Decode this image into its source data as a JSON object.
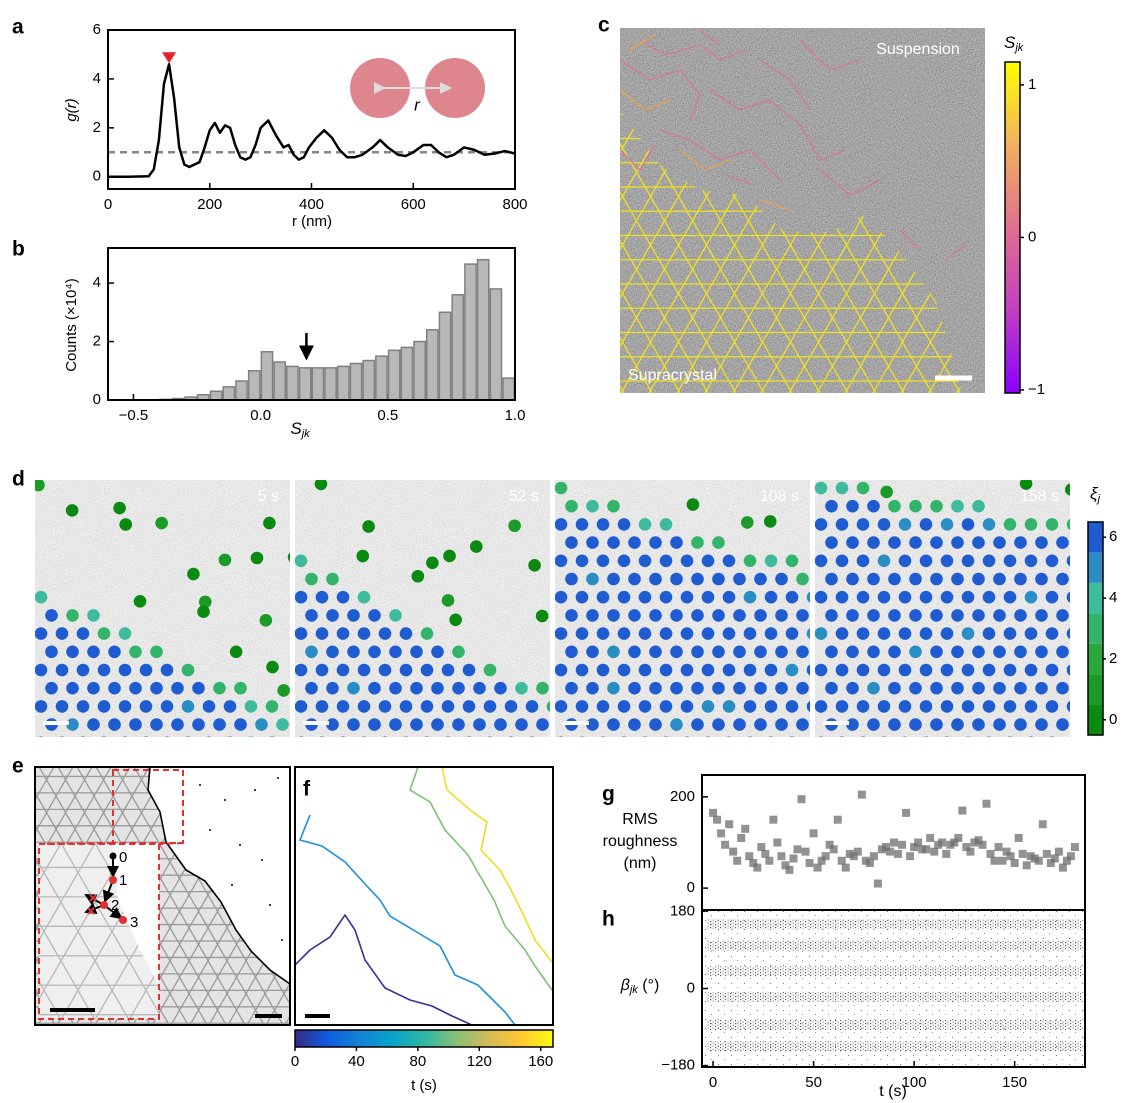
{
  "chart_data": [
    {
      "panel": "a",
      "type": "line",
      "ylabel": "g(r)",
      "xlabel": "r (nm)",
      "inset_label": "r",
      "x": [
        0,
        40,
        80,
        90,
        100,
        110,
        120,
        130,
        140,
        150,
        160,
        170,
        180,
        190,
        200,
        210,
        220,
        230,
        240,
        250,
        260,
        270,
        280,
        290,
        300,
        315,
        330,
        345,
        355,
        365,
        375,
        385,
        395,
        410,
        425,
        440,
        455,
        470,
        485,
        500,
        520,
        535,
        550,
        570,
        585,
        600,
        620,
        635,
        650,
        665,
        680,
        700,
        720,
        740,
        760,
        780,
        800
      ],
      "values": [
        0,
        0,
        0.02,
        0.3,
        1.5,
        3.8,
        4.6,
        3.2,
        1.2,
        0.5,
        0.4,
        0.5,
        0.6,
        1.2,
        1.9,
        2.2,
        1.8,
        2.1,
        2.0,
        1.3,
        0.8,
        0.7,
        0.8,
        1.3,
        2.0,
        2.3,
        1.7,
        1.2,
        1.3,
        0.9,
        0.7,
        0.8,
        1.2,
        1.6,
        1.9,
        1.6,
        1.1,
        0.8,
        0.8,
        0.9,
        1.2,
        1.5,
        1.2,
        0.9,
        0.85,
        1.0,
        1.3,
        1.3,
        1.0,
        0.8,
        0.9,
        1.2,
        1.1,
        0.9,
        0.95,
        1.05,
        0.95
      ],
      "color": "#000000",
      "hline": 1,
      "marker_color": "#e8202a",
      "xlim": [
        0,
        800
      ],
      "ylim": [
        -0.5,
        6
      ],
      "xticks": [
        0,
        200,
        400,
        600,
        800
      ],
      "yticks": [
        0,
        2,
        4,
        6
      ]
    },
    {
      "panel": "b",
      "type": "histogram",
      "ylabel": "Counts (×10⁴)",
      "xlabel": {
        "text": "S",
        "sub": "jk"
      },
      "bins": [
        -0.6,
        -0.55,
        -0.5,
        -0.45,
        -0.4,
        -0.35,
        -0.3,
        -0.25,
        -0.2,
        -0.15,
        -0.1,
        -0.05,
        0,
        0.05,
        0.1,
        0.15,
        0.2,
        0.25,
        0.3,
        0.35,
        0.4,
        0.45,
        0.5,
        0.55,
        0.6,
        0.65,
        0.7,
        0.75,
        0.8,
        0.85,
        0.9,
        0.95,
        1.0
      ],
      "values": [
        0,
        0,
        0,
        0,
        0.02,
        0.05,
        0.1,
        0.18,
        0.3,
        0.45,
        0.65,
        1.0,
        1.65,
        1.3,
        1.15,
        1.1,
        1.1,
        1.1,
        1.15,
        1.25,
        1.35,
        1.5,
        1.7,
        1.8,
        2.0,
        2.4,
        3.0,
        3.6,
        4.65,
        4.8,
        3.8,
        0.75
      ],
      "color": "#b8b8b8",
      "edge_color": "#808080",
      "arrow_x": 0.18,
      "xlim": [
        -0.6,
        1.0
      ],
      "ylim": [
        0,
        5.2
      ],
      "xticks": [
        {
          "value": -0.5,
          "label": "−0.5"
        },
        {
          "value": 0,
          "label": "0.0"
        },
        {
          "value": 0.5,
          "label": "0.5"
        },
        {
          "value": 1,
          "label": "1.0"
        }
      ],
      "yticks": [
        0,
        2,
        4
      ]
    },
    {
      "panel": "c",
      "type": "image",
      "labels": [
        "Suspension",
        "Supracrystal"
      ],
      "colorbar": {
        "label": {
          "text": "S",
          "sub": "jk"
        },
        "lim": [
          -1.02,
          1.15
        ],
        "ticks": [
          {
            "value": -1,
            "label": "−1"
          },
          0,
          1
        ],
        "colors": [
          "#8a00ff",
          "#c040c0",
          "#e07090",
          "#f0b060",
          "#ffff00"
        ]
      }
    },
    {
      "panel": "d",
      "type": "image",
      "frames": [
        "5 s",
        "52 s",
        "108 s",
        "158 s"
      ],
      "colorbar": {
        "label": {
          "text": "ξ",
          "sub": "j"
        },
        "lim": [
          -0.5,
          6.5
        ],
        "ticks": [
          0,
          2,
          4,
          6
        ],
        "colors": [
          "#0b8a12",
          "#1c9a28",
          "#2aa83e",
          "#34b46a",
          "#3dbb9c",
          "#2a8ec4",
          "#1f5cd2"
        ]
      }
    },
    {
      "panel": "e",
      "type": "image",
      "node_labels": [
        "0",
        "1",
        "2",
        "3"
      ]
    },
    {
      "panel": "f",
      "type": "image",
      "colorbar": {
        "label": "t (s)",
        "lim": [
          0,
          168
        ],
        "ticks": [
          0,
          40,
          80,
          120,
          160
        ],
        "colors": [
          "#352a87",
          "#0f5cdd",
          "#1481d6",
          "#06a4ca",
          "#2eb7a4",
          "#87bf77",
          "#d1bb59",
          "#fec832",
          "#f9fb0e"
        ]
      }
    },
    {
      "panel": "g",
      "type": "scatter",
      "ylabel": [
        "RMS",
        "roughness",
        "(nm)"
      ],
      "x": [
        0,
        2,
        4,
        6,
        8,
        10,
        12,
        14,
        16,
        18,
        20,
        22,
        24,
        26,
        28,
        30,
        32,
        34,
        36,
        38,
        40,
        42,
        44,
        46,
        48,
        50,
        52,
        54,
        56,
        58,
        60,
        62,
        64,
        66,
        68,
        70,
        72,
        74,
        76,
        78,
        80,
        82,
        84,
        86,
        88,
        90,
        92,
        94,
        96,
        98,
        100,
        102,
        104,
        106,
        108,
        110,
        112,
        114,
        116,
        118,
        120,
        122,
        124,
        126,
        128,
        130,
        132,
        134,
        136,
        138,
        140,
        142,
        144,
        146,
        148,
        150,
        152,
        154,
        156,
        158,
        160,
        162,
        164,
        166,
        168,
        170,
        172,
        174,
        176,
        178,
        180
      ],
      "values": [
        165,
        150,
        120,
        95,
        140,
        80,
        60,
        110,
        130,
        70,
        55,
        45,
        90,
        75,
        60,
        150,
        100,
        70,
        50,
        40,
        65,
        85,
        195,
        80,
        55,
        120,
        45,
        60,
        70,
        95,
        85,
        150,
        60,
        45,
        75,
        70,
        80,
        205,
        60,
        55,
        70,
        10,
        85,
        90,
        80,
        100,
        75,
        95,
        165,
        70,
        90,
        100,
        85,
        85,
        110,
        80,
        95,
        100,
        75,
        95,
        100,
        110,
        170,
        90,
        80,
        100,
        105,
        95,
        185,
        75,
        60,
        90,
        60,
        80,
        70,
        55,
        110,
        75,
        50,
        70,
        65,
        60,
        140,
        75,
        55,
        65,
        80,
        45,
        60,
        70,
        90
      ],
      "color": "#6e6e6e",
      "xlim": [
        -5.5,
        185
      ],
      "ylim": [
        -48,
        248
      ],
      "yticks": [
        0,
        200
      ]
    },
    {
      "panel": "h",
      "type": "bands",
      "ylabel": {
        "text": "β",
        "sub": "jk",
        "suffix": " (°)"
      },
      "xlabel": "t (s)",
      "band_centers": [
        150,
        100,
        40,
        -20,
        -85,
        -135
      ],
      "color": "#1a1a1a",
      "xlim": [
        -5.5,
        185
      ],
      "ylim": [
        -183,
        183
      ],
      "xticks": [
        0,
        50,
        100,
        150
      ],
      "yticks": [
        {
          "value": -180,
          "label": "−180"
        },
        0,
        180
      ]
    }
  ]
}
